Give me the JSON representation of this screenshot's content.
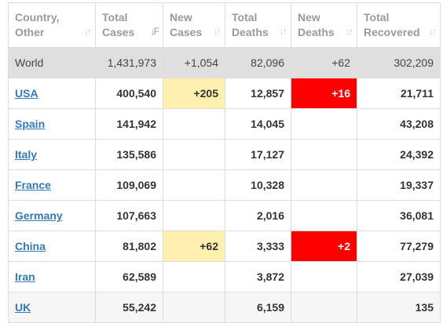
{
  "columns": [
    {
      "line1": "Country,",
      "line2": "Other"
    },
    {
      "line1": "Total",
      "line2": "Cases"
    },
    {
      "line1": "New",
      "line2": "Cases"
    },
    {
      "line1": "Total",
      "line2": "Deaths"
    },
    {
      "line1": "New",
      "line2": "Deaths"
    },
    {
      "line1": "Total",
      "line2": "Recovered"
    }
  ],
  "sort_icon_glyph": "↓↑",
  "active_sort_glyph": "↓F",
  "rows": [
    {
      "country": "World",
      "total_cases": "1,431,973",
      "new_cases": "+1,054",
      "total_deaths": "82,096",
      "new_deaths": "+62",
      "total_recovered": "302,209"
    },
    {
      "country": "USA",
      "total_cases": "400,540",
      "new_cases": "+205",
      "total_deaths": "12,857",
      "new_deaths": "+16",
      "total_recovered": "21,711"
    },
    {
      "country": "Spain",
      "total_cases": "141,942",
      "new_cases": "",
      "total_deaths": "14,045",
      "new_deaths": "",
      "total_recovered": "43,208"
    },
    {
      "country": "Italy",
      "total_cases": "135,586",
      "new_cases": "",
      "total_deaths": "17,127",
      "new_deaths": "",
      "total_recovered": "24,392"
    },
    {
      "country": "France",
      "total_cases": "109,069",
      "new_cases": "",
      "total_deaths": "10,328",
      "new_deaths": "",
      "total_recovered": "19,337"
    },
    {
      "country": "Germany",
      "total_cases": "107,663",
      "new_cases": "",
      "total_deaths": "2,016",
      "new_deaths": "",
      "total_recovered": "36,081"
    },
    {
      "country": "China",
      "total_cases": "81,802",
      "new_cases": "+62",
      "total_deaths": "3,333",
      "new_deaths": "+2",
      "total_recovered": "77,279"
    },
    {
      "country": "Iran",
      "total_cases": "62,589",
      "new_cases": "",
      "total_deaths": "3,872",
      "new_deaths": "",
      "total_recovered": "27,039"
    },
    {
      "country": "UK",
      "total_cases": "55,242",
      "new_cases": "",
      "total_deaths": "6,159",
      "new_deaths": "",
      "total_recovered": "135"
    }
  ],
  "colors": {
    "header_text": "#9a9a9a",
    "link": "#337ab7",
    "world_row_bg": "#dfdfdf",
    "new_cases_highlight": "#fff0b0",
    "new_deaths_highlight": "#ff0000"
  }
}
